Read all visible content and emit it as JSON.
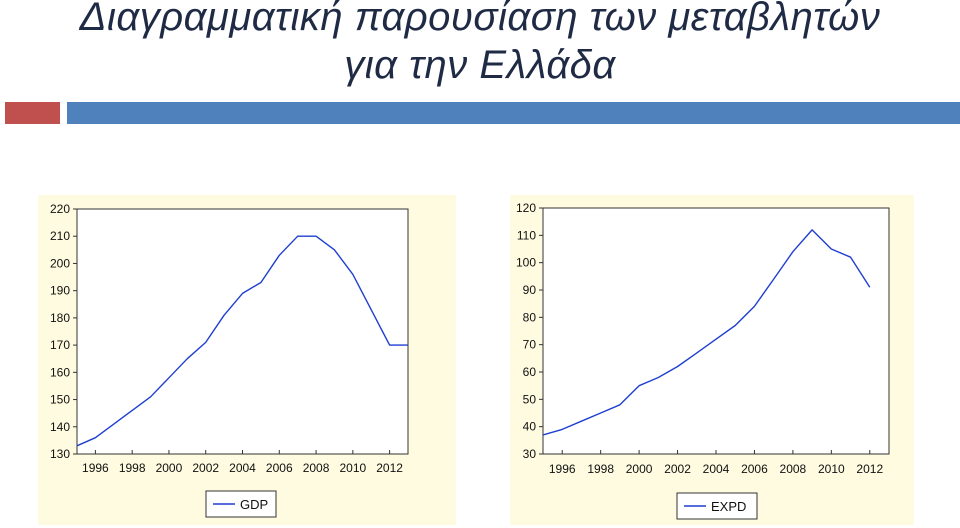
{
  "slide": {
    "title_line1": "Διαγραμματική παρουσίαση των μεταβλητών",
    "title_line2": "για την Ελλάδα"
  },
  "colors": {
    "title": "#1f2a44",
    "accent_red": "#c0504d",
    "accent_blue": "#4f81bd",
    "panel_bg": "#fffbe1",
    "line": "#1f3fd0"
  },
  "chart_data": [
    {
      "type": "line",
      "title": "",
      "xlabel": "",
      "ylabel": "",
      "xlim": [
        1995,
        2013
      ],
      "ylim": [
        130,
        220
      ],
      "y_ticks": [
        130,
        140,
        150,
        160,
        170,
        180,
        190,
        200,
        210,
        220
      ],
      "x_ticks": [
        1996,
        1998,
        2000,
        2002,
        2004,
        2006,
        2008,
        2010,
        2012
      ],
      "grid": false,
      "legend_position": "bottom",
      "series": [
        {
          "name": "GDP",
          "x": [
            1995,
            1996,
            1997,
            1998,
            1999,
            2000,
            2001,
            2002,
            2003,
            2004,
            2005,
            2006,
            2007,
            2008,
            2009,
            2010,
            2011,
            2012,
            2013
          ],
          "y": [
            133,
            136,
            141,
            146,
            151,
            158,
            165,
            171,
            181,
            189,
            193,
            203,
            210,
            210,
            205,
            196,
            183,
            170,
            170
          ]
        }
      ]
    },
    {
      "type": "line",
      "title": "",
      "xlabel": "",
      "ylabel": "",
      "xlim": [
        1995,
        2013
      ],
      "ylim": [
        30,
        120
      ],
      "y_ticks": [
        30,
        40,
        50,
        60,
        70,
        80,
        90,
        100,
        110,
        120
      ],
      "x_ticks": [
        1996,
        1998,
        2000,
        2002,
        2004,
        2006,
        2008,
        2010,
        2012
      ],
      "grid": false,
      "legend_position": "bottom",
      "series": [
        {
          "name": "EXPD",
          "x": [
            1995,
            1996,
            1997,
            1998,
            1999,
            2000,
            2001,
            2002,
            2003,
            2004,
            2005,
            2006,
            2007,
            2008,
            2009,
            2010,
            2011,
            2012
          ],
          "y": [
            37,
            39,
            42,
            45,
            48,
            55,
            58,
            62,
            67,
            72,
            77,
            84,
            94,
            104,
            112,
            105,
            102,
            91
          ]
        }
      ]
    }
  ]
}
